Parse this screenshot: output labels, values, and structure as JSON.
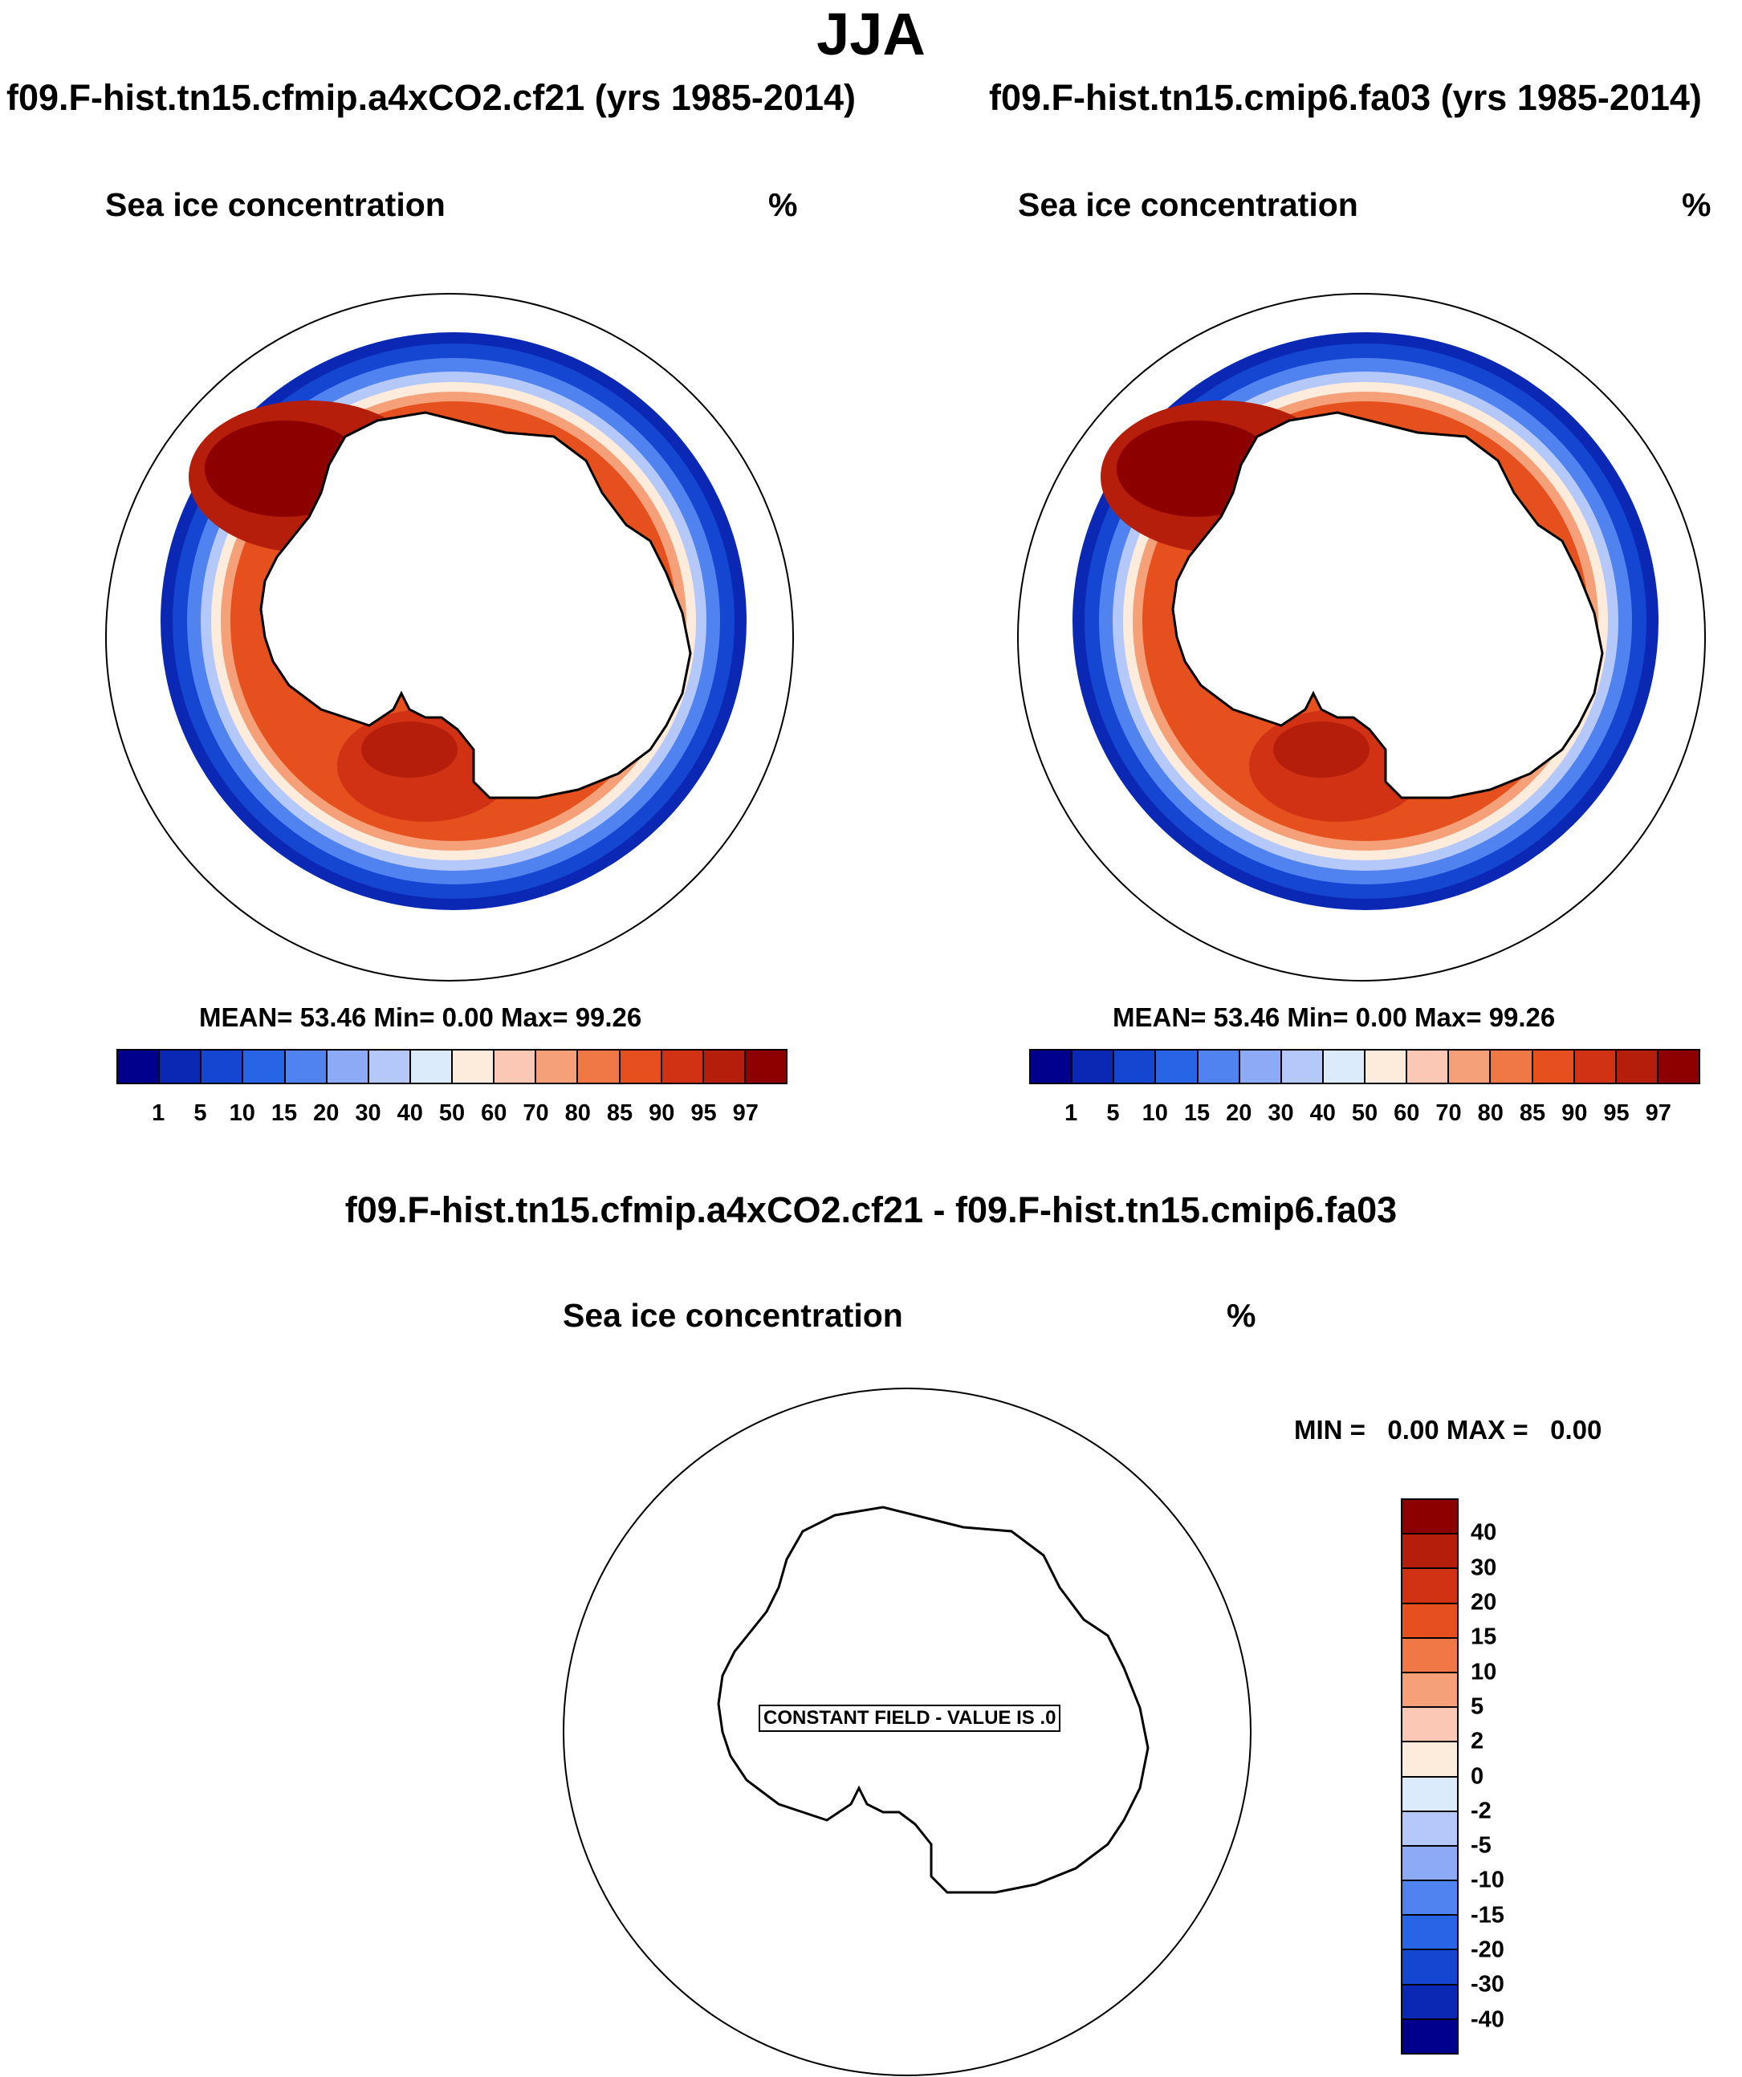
{
  "figure": {
    "title": "JJA",
    "diff_title": "f09.F-hist.tn15.cfmip.a4xCO2.cf21 - f09.F-hist.tn15.cmip6.fa03"
  },
  "panels": [
    {
      "case_title": "f09.F-hist.tn15.cfmip.a4xCO2.cf21 (yrs 1985-2014)",
      "variable": "Sea ice concentration",
      "units": "%",
      "stats": {
        "mean_label": "MEAN=",
        "mean": "53.46",
        "min_label": "Min=",
        "min": "0.00",
        "max_label": "Max=",
        "max": "99.26"
      }
    },
    {
      "case_title": "f09.F-hist.tn15.cmip6.fa03 (yrs 1985-2014)",
      "variable": "Sea ice concentration",
      "units": "%",
      "stats": {
        "mean_label": "MEAN=",
        "mean": "53.46",
        "min_label": "Min=",
        "min": "0.00",
        "max_label": "Max=",
        "max": "99.26"
      }
    }
  ],
  "diff_panel": {
    "variable": "Sea ice concentration",
    "units": "%",
    "minmax": "MIN =   0.00 MAX =   0.00",
    "constant_field_label": "CONSTANT FIELD - VALUE IS .0"
  },
  "colorbar": {
    "levels": [
      "1",
      "5",
      "10",
      "15",
      "20",
      "30",
      "40",
      "50",
      "60",
      "70",
      "80",
      "85",
      "90",
      "95",
      "97"
    ],
    "colors": [
      "#00008c",
      "#0a28b4",
      "#1446d2",
      "#2864e6",
      "#5082f0",
      "#8caaf5",
      "#b4c8fa",
      "#dcebfc",
      "#fdebdc",
      "#fac8b4",
      "#f5a078",
      "#f07846",
      "#e6501e",
      "#d23214",
      "#b41e0a",
      "#8c0000"
    ]
  },
  "diff_colorbar": {
    "levels": [
      "40",
      "30",
      "20",
      "15",
      "10",
      "5",
      "2",
      "0",
      "-2",
      "-5",
      "-10",
      "-15",
      "-20",
      "-30",
      "-40"
    ],
    "colors": [
      "#8c0000",
      "#b41e0a",
      "#d23214",
      "#e6501e",
      "#f07846",
      "#f5a078",
      "#fac8b4",
      "#fdebdc",
      "#dcebfc",
      "#b4c8fa",
      "#8caaf5",
      "#5082f0",
      "#2864e6",
      "#1446d2",
      "#0a28b4",
      "#00008c"
    ]
  }
}
